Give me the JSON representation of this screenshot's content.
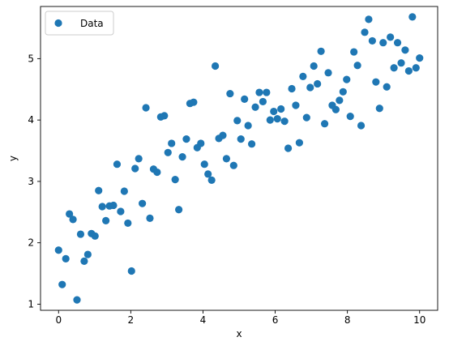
{
  "chart_data": {
    "type": "scatter",
    "xlabel": "x",
    "ylabel": "y",
    "xlim": [
      -0.5,
      10.5
    ],
    "ylim": [
      0.9,
      5.85
    ],
    "xticks": [
      0,
      2,
      4,
      6,
      8,
      10
    ],
    "yticks": [
      1,
      2,
      3,
      4,
      5
    ],
    "grid": false,
    "legend": {
      "position": "top-left"
    },
    "series": [
      {
        "name": "Data",
        "color": "#1f77b4",
        "points": [
          [
            0.0,
            1.88
          ],
          [
            0.1,
            1.32
          ],
          [
            0.2,
            1.74
          ],
          [
            0.3,
            2.47
          ],
          [
            0.4,
            2.38
          ],
          [
            0.51,
            1.07
          ],
          [
            0.61,
            2.14
          ],
          [
            0.71,
            1.7
          ],
          [
            0.81,
            1.81
          ],
          [
            0.91,
            2.15
          ],
          [
            1.01,
            2.11
          ],
          [
            1.11,
            2.85
          ],
          [
            1.21,
            2.59
          ],
          [
            1.31,
            2.36
          ],
          [
            1.41,
            2.6
          ],
          [
            1.52,
            2.61
          ],
          [
            1.62,
            3.28
          ],
          [
            1.72,
            2.51
          ],
          [
            1.82,
            2.84
          ],
          [
            1.92,
            2.32
          ],
          [
            2.02,
            1.54
          ],
          [
            2.12,
            3.21
          ],
          [
            2.22,
            3.37
          ],
          [
            2.32,
            2.64
          ],
          [
            2.42,
            4.2
          ],
          [
            2.53,
            2.4
          ],
          [
            2.63,
            3.2
          ],
          [
            2.73,
            3.15
          ],
          [
            2.83,
            4.05
          ],
          [
            2.93,
            4.07
          ],
          [
            3.03,
            3.47
          ],
          [
            3.13,
            3.62
          ],
          [
            3.23,
            3.03
          ],
          [
            3.33,
            2.54
          ],
          [
            3.43,
            3.4
          ],
          [
            3.54,
            3.69
          ],
          [
            3.64,
            4.27
          ],
          [
            3.74,
            4.29
          ],
          [
            3.84,
            3.55
          ],
          [
            3.94,
            3.62
          ],
          [
            4.04,
            3.28
          ],
          [
            4.14,
            3.12
          ],
          [
            4.24,
            3.02
          ],
          [
            4.34,
            4.88
          ],
          [
            4.44,
            3.7
          ],
          [
            4.55,
            3.75
          ],
          [
            4.65,
            3.37
          ],
          [
            4.75,
            4.43
          ],
          [
            4.85,
            3.26
          ],
          [
            4.95,
            3.99
          ],
          [
            5.05,
            3.69
          ],
          [
            5.15,
            4.34
          ],
          [
            5.25,
            3.91
          ],
          [
            5.35,
            3.61
          ],
          [
            5.45,
            4.21
          ],
          [
            5.56,
            4.45
          ],
          [
            5.66,
            4.3
          ],
          [
            5.76,
            4.45
          ],
          [
            5.86,
            4.0
          ],
          [
            5.96,
            4.14
          ],
          [
            6.06,
            4.02
          ],
          [
            6.16,
            4.18
          ],
          [
            6.26,
            3.98
          ],
          [
            6.36,
            3.54
          ],
          [
            6.46,
            4.51
          ],
          [
            6.57,
            4.24
          ],
          [
            6.67,
            3.63
          ],
          [
            6.77,
            4.71
          ],
          [
            6.87,
            4.04
          ],
          [
            6.97,
            4.53
          ],
          [
            7.07,
            4.88
          ],
          [
            7.17,
            4.59
          ],
          [
            7.27,
            5.12
          ],
          [
            7.37,
            3.94
          ],
          [
            7.47,
            4.77
          ],
          [
            7.58,
            4.24
          ],
          [
            7.68,
            4.17
          ],
          [
            7.78,
            4.32
          ],
          [
            7.88,
            4.46
          ],
          [
            7.98,
            4.66
          ],
          [
            8.08,
            4.06
          ],
          [
            8.18,
            5.11
          ],
          [
            8.28,
            4.89
          ],
          [
            8.38,
            3.91
          ],
          [
            8.48,
            5.43
          ],
          [
            8.59,
            5.64
          ],
          [
            8.69,
            5.29
          ],
          [
            8.79,
            4.62
          ],
          [
            8.89,
            4.19
          ],
          [
            8.99,
            5.26
          ],
          [
            9.09,
            4.54
          ],
          [
            9.19,
            5.35
          ],
          [
            9.29,
            4.85
          ],
          [
            9.39,
            5.26
          ],
          [
            9.49,
            4.93
          ],
          [
            9.6,
            5.14
          ],
          [
            9.7,
            4.8
          ],
          [
            9.8,
            5.68
          ],
          [
            9.9,
            4.85
          ],
          [
            10.0,
            5.01
          ]
        ]
      }
    ]
  }
}
